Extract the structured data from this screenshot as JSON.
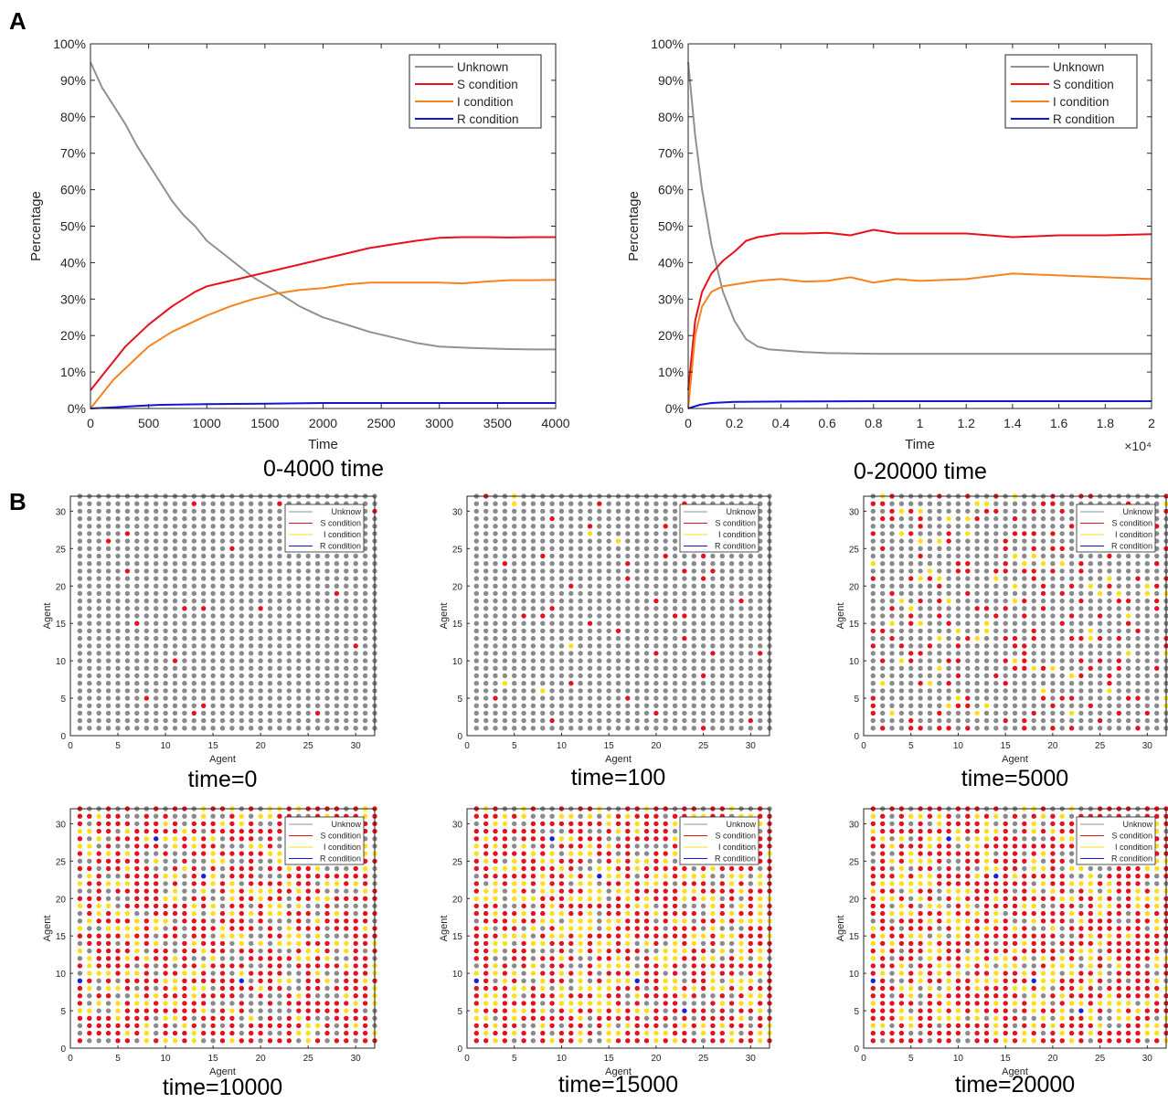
{
  "panels": {
    "a": "A",
    "b": "B"
  },
  "colors": {
    "unknown": "#8c9393",
    "s": "#e8101b",
    "i": "#f5841f",
    "r": "#1414d2",
    "dot_unknown": "#8a8a8a",
    "dot_s": "#e3121c",
    "dot_i": "#ffde1a",
    "dot_r": "#1d1ddc"
  },
  "chart_data": [
    {
      "type": "line",
      "caption": "0-4000 time",
      "xlabel": "Time",
      "ylabel": "Percentage",
      "xlim": [
        0,
        4000
      ],
      "ylim": [
        0,
        100
      ],
      "x_ticks": [
        0,
        500,
        1000,
        1500,
        2000,
        2500,
        3000,
        3500,
        4000
      ],
      "x_tick_labels": [
        "0",
        "500",
        "1000",
        "1500",
        "2000",
        "2500",
        "3000",
        "3500",
        "4000"
      ],
      "y_ticks": [
        0,
        10,
        20,
        30,
        40,
        50,
        60,
        70,
        80,
        90,
        100
      ],
      "y_tick_labels": [
        "0%",
        "10%",
        "20%",
        "30%",
        "40%",
        "50%",
        "60%",
        "70%",
        "80%",
        "90%",
        "100%"
      ],
      "x_multiplier": "",
      "legend": "top-right",
      "grid": false,
      "series": [
        {
          "name": "Unknown",
          "color": "#8c9393",
          "x": [
            0,
            100,
            200,
            300,
            400,
            500,
            600,
            700,
            800,
            900,
            1000,
            1200,
            1400,
            1600,
            1800,
            2000,
            2200,
            2400,
            2600,
            2800,
            3000,
            3200,
            3400,
            3600,
            3800,
            4000
          ],
          "y": [
            95,
            88,
            83,
            78,
            72,
            67,
            62,
            57,
            53,
            50,
            46,
            41,
            36,
            32,
            28,
            25,
            23,
            21,
            19.5,
            18,
            17,
            16.7,
            16.5,
            16.3,
            16.2,
            16.2
          ]
        },
        {
          "name": "S condition",
          "color": "#e8101b",
          "x": [
            0,
            100,
            200,
            300,
            400,
            500,
            600,
            700,
            800,
            900,
            1000,
            1200,
            1400,
            1600,
            1800,
            2000,
            2200,
            2400,
            2600,
            2800,
            3000,
            3200,
            3400,
            3600,
            3800,
            4000
          ],
          "y": [
            5,
            9,
            13,
            17,
            20,
            23,
            25.5,
            28,
            30,
            32,
            33.5,
            35,
            36.5,
            38,
            39.5,
            41,
            42.5,
            44,
            45,
            46,
            46.8,
            47,
            47,
            46.9,
            47,
            47
          ]
        },
        {
          "name": "I condition",
          "color": "#f5841f",
          "x": [
            0,
            100,
            200,
            300,
            400,
            500,
            600,
            700,
            800,
            900,
            1000,
            1200,
            1400,
            1600,
            1800,
            2000,
            2200,
            2400,
            2600,
            2800,
            3000,
            3200,
            3400,
            3600,
            3800,
            4000
          ],
          "y": [
            0,
            4,
            8,
            11,
            14,
            17,
            19,
            21,
            22.5,
            24,
            25.5,
            28,
            30,
            31.5,
            32.5,
            33,
            34,
            34.5,
            34.5,
            34.5,
            34.5,
            34.3,
            34.8,
            35.2,
            35.2,
            35.3
          ]
        },
        {
          "name": "R condition",
          "color": "#1414d2",
          "x": [
            0,
            200,
            400,
            600,
            1000,
            1500,
            2000,
            2500,
            3000,
            3500,
            4000
          ],
          "y": [
            0,
            0.3,
            0.7,
            1.0,
            1.2,
            1.3,
            1.5,
            1.5,
            1.5,
            1.5,
            1.5
          ]
        }
      ]
    },
    {
      "type": "line",
      "caption": "0-20000 time",
      "xlabel": "Time",
      "ylabel": "Percentage",
      "xlim": [
        0,
        20000
      ],
      "ylim": [
        0,
        100
      ],
      "x_ticks": [
        0,
        2000,
        4000,
        6000,
        8000,
        10000,
        12000,
        14000,
        16000,
        18000,
        20000
      ],
      "x_tick_labels": [
        "0",
        "0.2",
        "0.4",
        "0.6",
        "0.8",
        "1",
        "1.2",
        "1.4",
        "1.6",
        "1.8",
        "2"
      ],
      "y_ticks": [
        0,
        10,
        20,
        30,
        40,
        50,
        60,
        70,
        80,
        90,
        100
      ],
      "y_tick_labels": [
        "0%",
        "10%",
        "20%",
        "30%",
        "40%",
        "50%",
        "60%",
        "70%",
        "80%",
        "90%",
        "100%"
      ],
      "x_multiplier": "×10⁴",
      "legend": "top-right",
      "grid": false,
      "series": [
        {
          "name": "Unknown",
          "color": "#8c9393",
          "x": [
            0,
            300,
            600,
            1000,
            1500,
            2000,
            2500,
            3000,
            3500,
            4000,
            5000,
            6000,
            8000,
            10000,
            12000,
            14000,
            16000,
            18000,
            20000
          ],
          "y": [
            95,
            75,
            60,
            45,
            32,
            24,
            19,
            17,
            16.2,
            16,
            15.5,
            15.2,
            15,
            15,
            15,
            15,
            15,
            15,
            15
          ]
        },
        {
          "name": "S condition",
          "color": "#e8101b",
          "x": [
            0,
            300,
            600,
            1000,
            1500,
            2000,
            2500,
            3000,
            3500,
            4000,
            5000,
            6000,
            7000,
            8000,
            9000,
            10000,
            12000,
            14000,
            16000,
            18000,
            20000
          ],
          "y": [
            5,
            24,
            32,
            37,
            40.5,
            43,
            46,
            47,
            47.5,
            48,
            48,
            48.2,
            47.5,
            49,
            48,
            48,
            48,
            47,
            47.5,
            47.5,
            47.8
          ]
        },
        {
          "name": "I condition",
          "color": "#f5841f",
          "x": [
            0,
            300,
            600,
            1000,
            1500,
            2000,
            2500,
            3000,
            3500,
            4000,
            5000,
            6000,
            7000,
            8000,
            9000,
            10000,
            12000,
            14000,
            16000,
            18000,
            20000
          ],
          "y": [
            0,
            20,
            28,
            32,
            33.5,
            34,
            34.5,
            35,
            35.3,
            35.5,
            34.8,
            35,
            36,
            34.5,
            35.5,
            35,
            35.5,
            37,
            36.5,
            36,
            35.5
          ]
        },
        {
          "name": "R condition",
          "color": "#1414d2",
          "x": [
            0,
            500,
            1000,
            2000,
            4000,
            8000,
            12000,
            16000,
            20000
          ],
          "y": [
            0,
            1,
            1.5,
            1.8,
            1.9,
            2,
            2,
            2,
            2
          ]
        }
      ]
    }
  ],
  "scatter_legend": [
    "Unknow",
    "S condition",
    "I condition",
    "R condition"
  ],
  "scatter_common": {
    "xlabel": "Agent",
    "ylabel": "Agent",
    "xlim": [
      0,
      32
    ],
    "ylim": [
      0,
      32
    ],
    "ticks": [
      0,
      5,
      10,
      15,
      20,
      25,
      30
    ],
    "tick_labels": [
      "0",
      "5",
      "10",
      "15",
      "20",
      "25",
      "30"
    ],
    "grid": 32
  },
  "scatter_panels": [
    {
      "caption": "time=0",
      "p_s": 0.025,
      "p_i": 0.0,
      "p_r": 0.0,
      "seed": 11,
      "blue": []
    },
    {
      "caption": "time=100",
      "p_s": 0.035,
      "p_i": 0.004,
      "p_r": 0.0,
      "seed": 23,
      "blue": []
    },
    {
      "caption": "time=5000",
      "p_s": 0.17,
      "p_i": 0.08,
      "p_r": 0.0,
      "seed": 37,
      "blue": []
    },
    {
      "caption": "time=10000",
      "p_s": 0.5,
      "p_i": 0.24,
      "p_r": 0.0,
      "seed": 41,
      "blue": [
        [
          9,
          28
        ],
        [
          14,
          23
        ],
        [
          1,
          9
        ],
        [
          18,
          9
        ]
      ]
    },
    {
      "caption": "time=15000",
      "p_s": 0.5,
      "p_i": 0.3,
      "p_r": 0.0,
      "seed": 53,
      "blue": [
        [
          9,
          28
        ],
        [
          14,
          23
        ],
        [
          1,
          9
        ],
        [
          18,
          9
        ],
        [
          23,
          5
        ]
      ]
    },
    {
      "caption": "time=20000",
      "p_s": 0.54,
      "p_i": 0.3,
      "p_r": 0.0,
      "seed": 67,
      "blue": [
        [
          9,
          28
        ],
        [
          14,
          23
        ],
        [
          1,
          9
        ],
        [
          18,
          9
        ],
        [
          23,
          5
        ]
      ]
    }
  ]
}
